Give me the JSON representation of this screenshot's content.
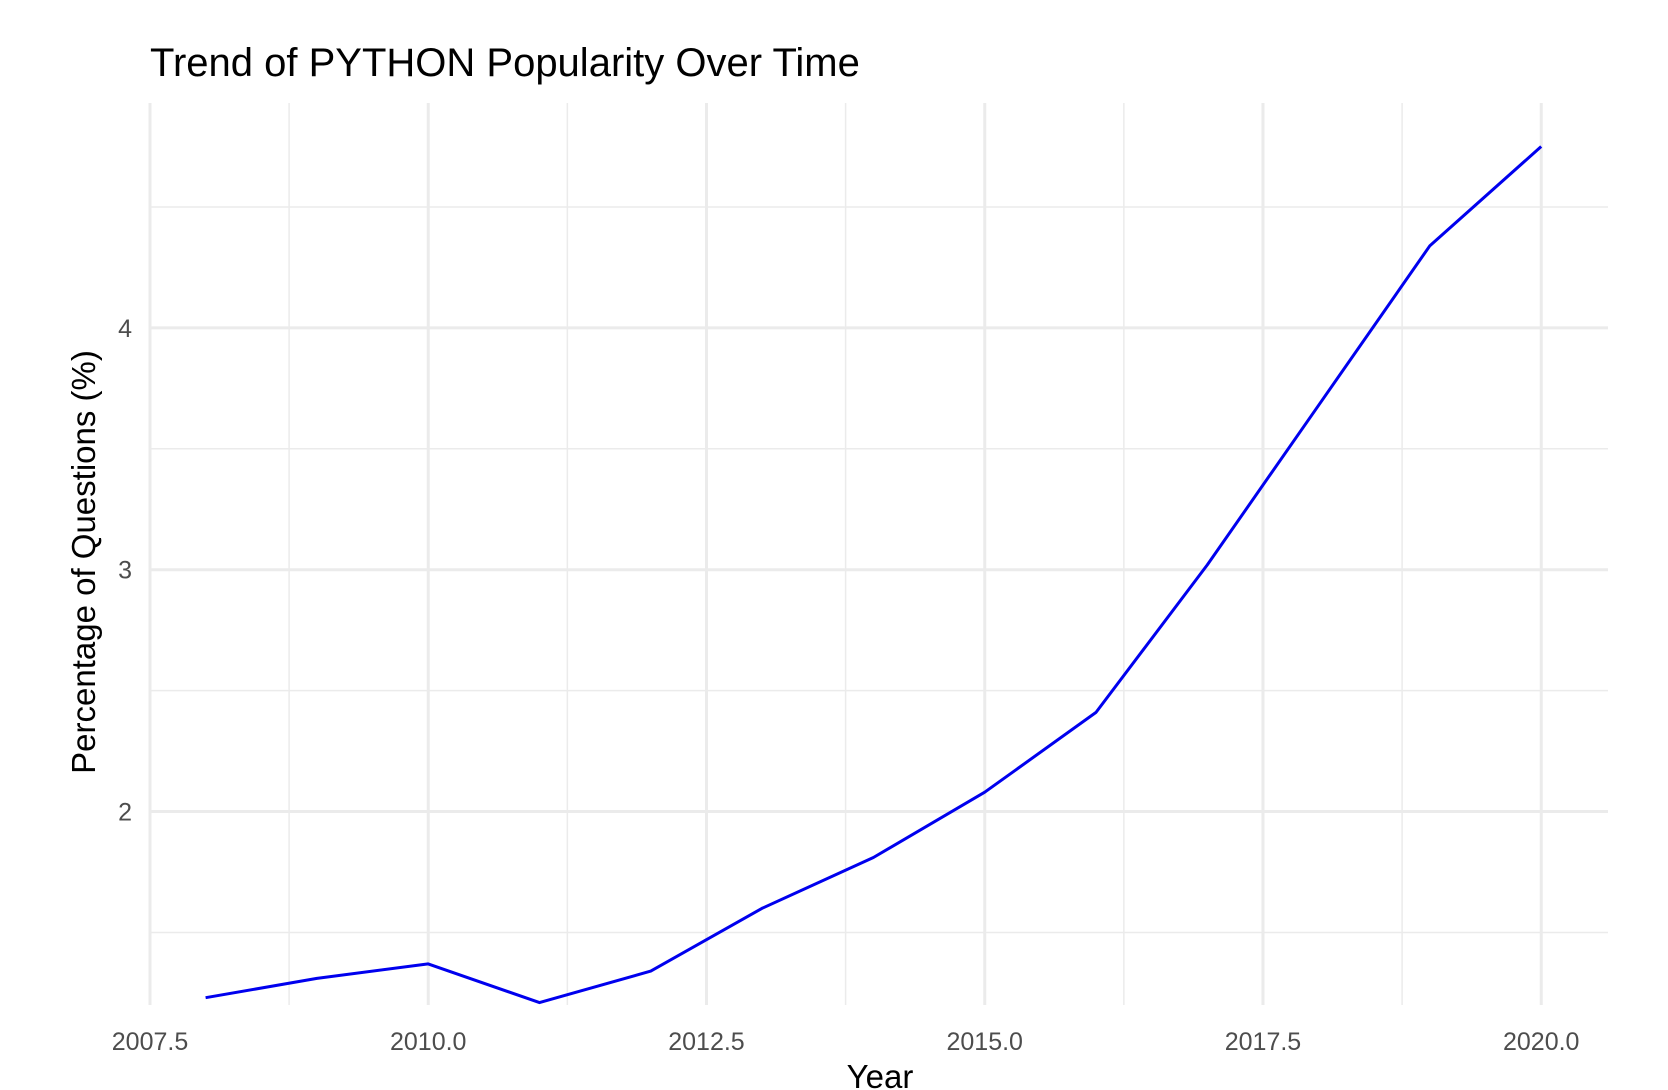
{
  "chart_data": {
    "type": "line",
    "title": "Trend of PYTHON Popularity Over Time",
    "xlabel": "Year",
    "ylabel": "Percentage of Questions (%)",
    "xlim": [
      2007.5,
      2020.6
    ],
    "ylim": [
      1.2,
      4.93
    ],
    "grid": true,
    "x_ticks": [
      2007.5,
      2010.0,
      2012.5,
      2015.0,
      2017.5,
      2020.0
    ],
    "x_tick_labels": [
      "2007.5",
      "2010.0",
      "2012.5",
      "2015.0",
      "2017.5",
      "2020.0"
    ],
    "y_ticks": [
      2,
      3,
      4
    ],
    "y_tick_labels": [
      "2",
      "3",
      "4"
    ],
    "series": [
      {
        "color": "#0000ee",
        "x": [
          2008,
          2009,
          2010,
          2011,
          2012,
          2013,
          2014,
          2015,
          2016,
          2017,
          2018,
          2019,
          2020
        ],
        "y": [
          1.23,
          1.31,
          1.37,
          1.21,
          1.34,
          1.6,
          1.81,
          2.08,
          2.41,
          3.02,
          3.68,
          4.34,
          4.75
        ]
      }
    ]
  }
}
